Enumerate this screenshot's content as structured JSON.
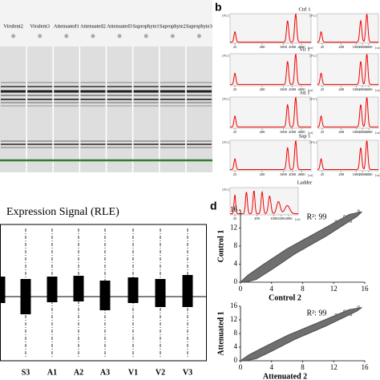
{
  "panel_labels": {
    "b": "b",
    "d": "d"
  },
  "gel": {
    "lanes": [
      "Virulent2",
      "Virulent3",
      "Attenuated1",
      "Attenuated2",
      "Attenuated3",
      "Saprophyte1",
      "Saprophyte2",
      "Saprophyte3"
    ]
  },
  "electropherograms": {
    "samples": [
      "Ctrl 1",
      "Vir 1",
      "Att 1",
      "Sap 1",
      "Ladder"
    ],
    "y_unit": "[FU]",
    "x_unit": "[nt]",
    "xticks": [
      25,
      200,
      1000,
      2000,
      4000
    ]
  },
  "rle": {
    "title": "Expression Signal (RLE)",
    "categories": [
      "S3",
      "A1",
      "A2",
      "A3",
      "V1",
      "V2",
      "V3"
    ]
  },
  "chart_data": [
    {
      "type": "scatter",
      "xlabel": "Control 2",
      "ylabel": "Control 1",
      "annotation": "R²: 99",
      "xlim": [
        0,
        16
      ],
      "ylim": [
        0,
        16
      ],
      "xticks": [
        0,
        4,
        8,
        12,
        16
      ],
      "yticks": [
        0,
        4,
        8,
        12,
        16
      ]
    },
    {
      "type": "scatter",
      "xlabel": "Attenuated 2",
      "ylabel": "Attenuated 1",
      "annotation": "R²: 99",
      "xlim": [
        0,
        16
      ],
      "ylim": [
        0,
        16
      ],
      "xticks": [
        0,
        4,
        8,
        12,
        16
      ],
      "yticks": [
        0,
        4,
        8,
        12,
        16
      ]
    }
  ]
}
